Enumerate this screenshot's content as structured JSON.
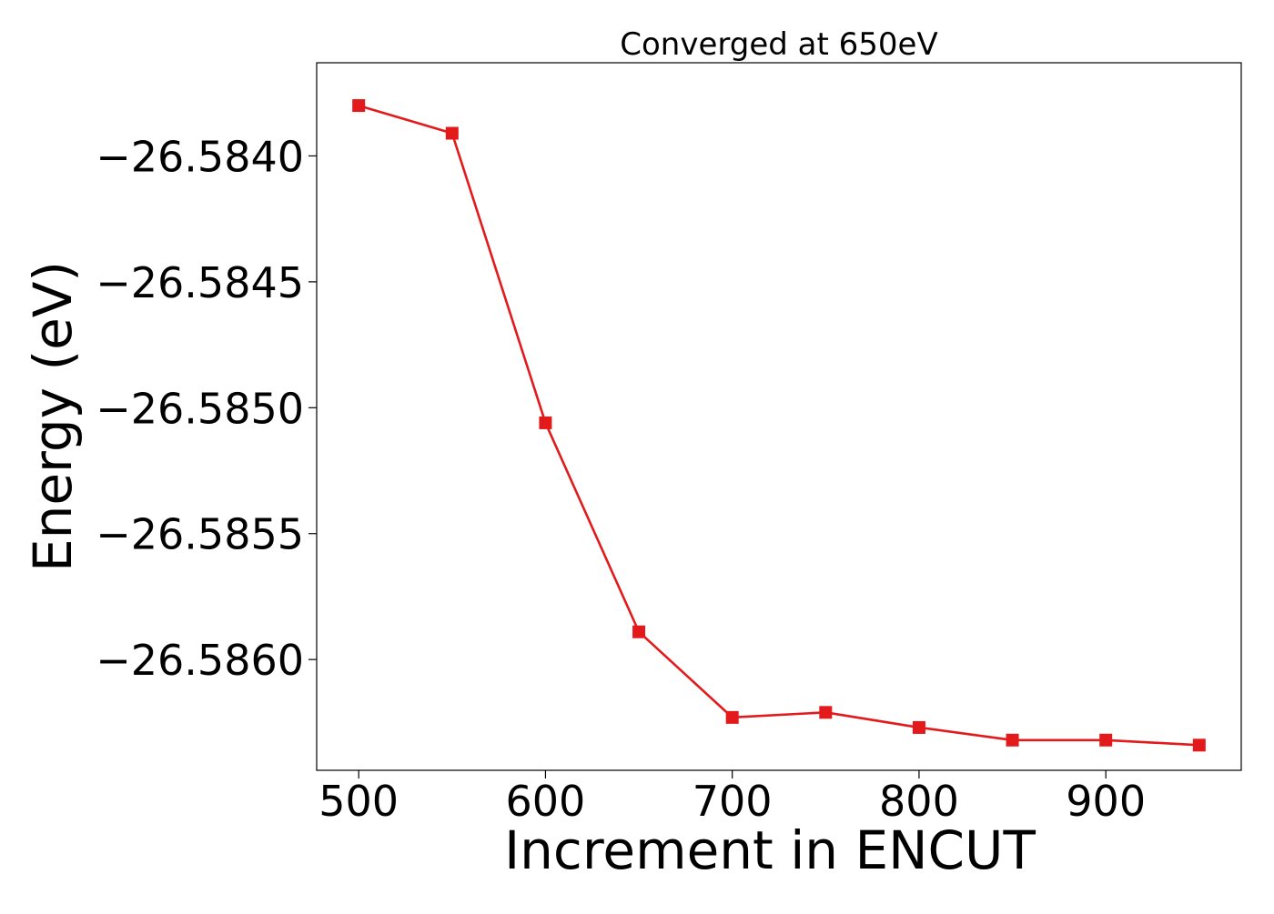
{
  "chart_data": {
    "type": "line",
    "title": "Converged at 650eV",
    "xlabel": "Increment in ENCUT",
    "ylabel": "Energy (eV)",
    "xlim": [
      477.5,
      972.5
    ],
    "ylim": [
      -26.58644,
      -26.58363
    ],
    "xticks": [
      500,
      600,
      700,
      800,
      900
    ],
    "xtick_labels": [
      "500",
      "600",
      "700",
      "800",
      "900"
    ],
    "yticks": [
      -26.584,
      -26.5845,
      -26.585,
      -26.5855,
      -26.586
    ],
    "ytick_labels": [
      "−26.5840",
      "−26.5845",
      "−26.5850",
      "−26.5855",
      "−26.5860"
    ],
    "grid": false,
    "legend": "none",
    "series": [
      {
        "color": "#e31a1c",
        "marker": "square",
        "x": [
          500,
          550,
          600,
          650,
          700,
          750,
          800,
          850,
          900,
          950
        ],
        "y": [
          -26.5838,
          -26.58391,
          -26.58506,
          -26.58589,
          -26.58623,
          -26.58621,
          -26.58627,
          -26.58632,
          -26.58632,
          -26.58634
        ]
      }
    ]
  }
}
